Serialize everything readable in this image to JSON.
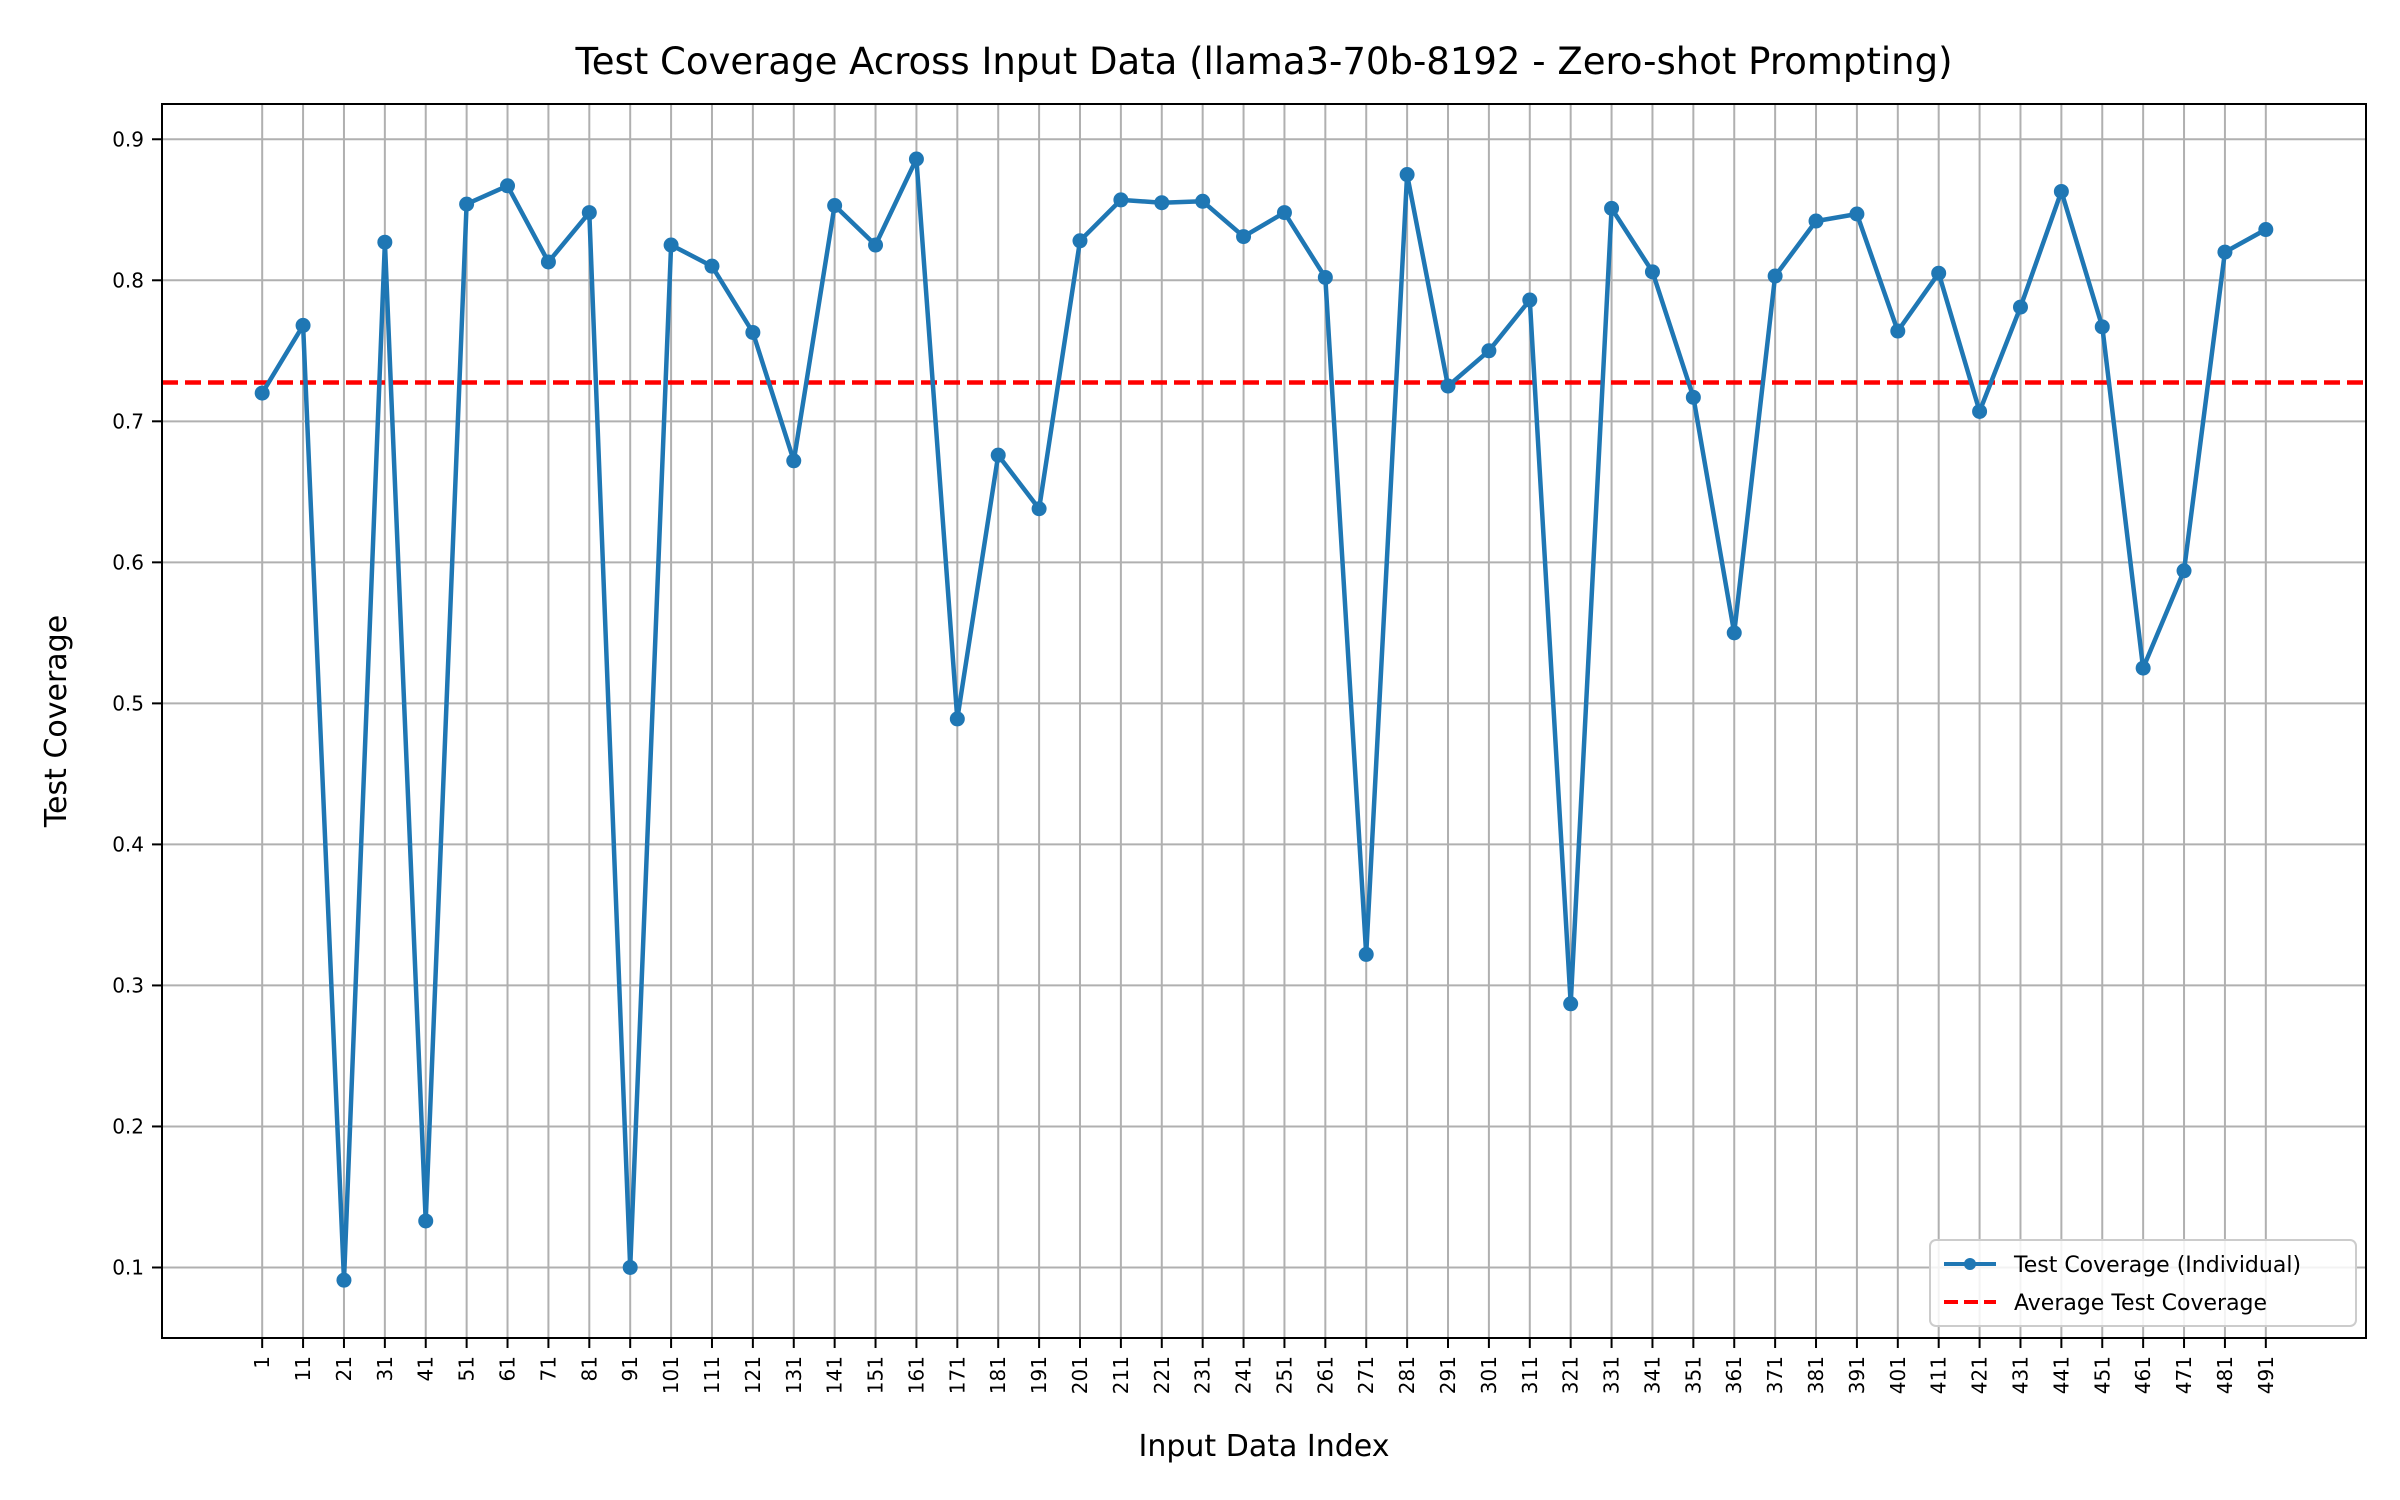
{
  "chart_data": {
    "type": "line",
    "title": "Test Coverage Across Input Data (llama3-70b-8192 - Zero-shot Prompting)",
    "xlabel": "Input Data Index",
    "ylabel": "Test Coverage",
    "x": [
      1,
      11,
      21,
      31,
      41,
      51,
      61,
      71,
      81,
      91,
      101,
      111,
      121,
      131,
      141,
      151,
      161,
      171,
      181,
      191,
      201,
      211,
      221,
      231,
      241,
      251,
      261,
      271,
      281,
      291,
      301,
      311,
      321,
      331,
      341,
      351,
      361,
      371,
      381,
      391,
      401,
      411,
      421,
      431,
      441,
      451,
      461,
      471,
      481,
      491
    ],
    "xlim": [
      -23.5,
      515.5
    ],
    "ylim": [
      0.05,
      0.925
    ],
    "yticks": [
      0.1,
      0.2,
      0.3,
      0.4,
      0.5,
      0.6,
      0.7,
      0.8,
      0.9
    ],
    "grid": true,
    "legend_position": "lower-right",
    "series": [
      {
        "name": "Test Coverage (Individual)",
        "color": "#1f77b4",
        "style": "line-with-markers",
        "values": [
          0.72,
          0.768,
          0.091,
          0.827,
          0.133,
          0.854,
          0.867,
          0.813,
          0.848,
          0.1,
          0.825,
          0.81,
          0.763,
          0.672,
          0.853,
          0.825,
          0.886,
          0.489,
          0.676,
          0.638,
          0.828,
          0.857,
          0.855,
          0.856,
          0.831,
          0.848,
          0.802,
          0.322,
          0.875,
          0.725,
          0.75,
          0.786,
          0.287,
          0.851,
          0.806,
          0.717,
          0.55,
          0.803,
          0.842,
          0.847,
          0.764,
          0.805,
          0.707,
          0.781,
          0.863,
          0.767,
          0.525,
          0.594,
          0.82,
          0.836
        ]
      },
      {
        "name": "Average Test Coverage",
        "color": "#ff0000",
        "style": "dashed-horizontal",
        "value": 0.7275
      }
    ]
  }
}
